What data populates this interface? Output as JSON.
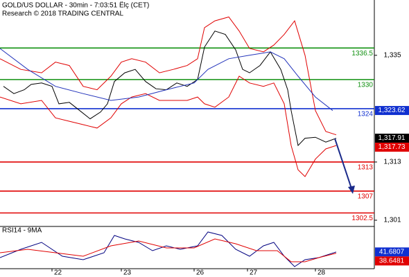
{
  "chart_data": [
    {
      "type": "line",
      "title": "GOLD/US DOLLAR - 30min - 7:03:51 Ëlç (CET)",
      "subtitle": "Research © 2018 TRADING CENTRAL",
      "xlim": [
        0,
        108
      ],
      "xticks": [
        {
          "value": 15,
          "label": "22"
        },
        {
          "value": 35,
          "label": "23"
        },
        {
          "value": 56,
          "label": "26"
        },
        {
          "value": 71.4,
          "label": "27"
        },
        {
          "value": 91,
          "label": "28"
        }
      ],
      "ylim": [
        1300,
        1346.4
      ],
      "yticks": [
        {
          "value": 1335,
          "label": "1,335"
        },
        {
          "value": 1313,
          "label": "1,313"
        },
        {
          "value": 1301,
          "label": "1,301"
        }
      ],
      "series": [
        {
          "color": "#000000",
          "x": [
            1,
            4,
            7,
            9,
            12,
            15,
            17,
            20,
            23,
            26,
            29,
            31,
            33,
            36,
            39,
            42,
            45,
            48,
            51,
            54,
            57,
            59,
            62,
            65,
            68,
            70,
            72,
            75,
            78,
            81,
            83,
            84,
            86,
            88,
            91,
            94,
            97
          ],
          "values": [
            1328.6,
            1327.1,
            1327.9,
            1329,
            1329.3,
            1328.6,
            1325,
            1325.3,
            1323.6,
            1321.9,
            1323.3,
            1325,
            1329.6,
            1331.4,
            1332.1,
            1329.6,
            1328.1,
            1327.9,
            1329.3,
            1328.6,
            1330,
            1336.7,
            1340,
            1339.3,
            1336.1,
            1332.1,
            1331.4,
            1332.9,
            1335.7,
            1332.1,
            1327.9,
            1323.6,
            1316.4,
            1317.9,
            1318.1,
            1317.1,
            1317.9
          ]
        },
        {
          "color": "#e00000",
          "x": [
            0,
            6,
            12,
            16,
            20,
            24,
            28,
            32,
            35,
            38,
            42,
            46,
            50,
            54,
            57,
            59,
            62,
            66,
            69,
            72,
            76,
            79,
            82,
            85,
            88,
            91,
            94,
            97
          ],
          "values": [
            1334.3,
            1332.1,
            1331.4,
            1333.6,
            1332.9,
            1328.6,
            1327.9,
            1330.7,
            1333.6,
            1334.3,
            1333.6,
            1331.4,
            1332.1,
            1332.9,
            1334.3,
            1340.7,
            1342.1,
            1342.9,
            1340,
            1336.4,
            1335.7,
            1337.1,
            1339.3,
            1342.1,
            1335,
            1323.6,
            1319.3,
            1318.6
          ]
        },
        {
          "color": "#e00000",
          "x": [
            0,
            6,
            12,
            16,
            20,
            24,
            28,
            32,
            35,
            38,
            42,
            46,
            50,
            54,
            57,
            59,
            62,
            66,
            69,
            72,
            76,
            79,
            82,
            84,
            86,
            88,
            91,
            94,
            97
          ],
          "values": [
            1326.4,
            1325,
            1325.7,
            1322.1,
            1321.4,
            1320.7,
            1320,
            1322.1,
            1325,
            1326.4,
            1327.1,
            1325.7,
            1325.7,
            1325.7,
            1326.4,
            1325,
            1324.3,
            1326.4,
            1330.7,
            1329.3,
            1328.6,
            1329.3,
            1325,
            1316.4,
            1311.4,
            1310,
            1313.6,
            1315.7,
            1316.4
          ]
        },
        {
          "color": "#2233bb",
          "x": [
            0,
            8,
            16,
            24,
            32,
            40,
            48,
            56,
            60,
            66,
            72,
            78,
            82,
            86,
            91,
            96
          ],
          "values": [
            1336.4,
            1332.1,
            1328.6,
            1327.1,
            1325.7,
            1326.4,
            1327.9,
            1329.3,
            1332.1,
            1334.3,
            1335,
            1335.7,
            1334.3,
            1330.7,
            1326.4,
            1323.6
          ]
        }
      ],
      "levels": [
        {
          "value": 1336.5,
          "color": "#109010"
        },
        {
          "value": 1330,
          "color": "#109010"
        },
        {
          "value": 1324,
          "color": "#1030d0"
        },
        {
          "value": 1313,
          "color": "#e00000"
        },
        {
          "value": 1307,
          "color": "#e00000"
        },
        {
          "value": 1302.5,
          "color": "#e00000"
        }
      ],
      "price_labels": [
        {
          "value": 1323.62,
          "label": "1,323.62",
          "color": "#1030d0"
        },
        {
          "value": 1317.91,
          "label": "1,317.91",
          "color": "#000000"
        },
        {
          "value": 1317.73,
          "label": "1,317.73",
          "color": "#e00000"
        }
      ]
    },
    {
      "type": "line",
      "title": "RSI14 - 9MA",
      "xlim": [
        0,
        108
      ],
      "ylim": [
        0,
        100
      ],
      "series": [
        {
          "color": "#000080",
          "x": [
            0,
            6,
            12,
            18,
            24,
            30,
            33,
            36,
            40,
            44,
            48,
            52,
            57,
            60,
            64,
            68,
            72,
            76,
            79,
            82,
            85,
            88,
            92,
            97
          ],
          "values": [
            27.6,
            48.3,
            65.5,
            31,
            22.4,
            39.7,
            82.8,
            74.1,
            65.5,
            44.8,
            56.9,
            48.3,
            56.9,
            91.4,
            82.8,
            48.3,
            31,
            56.9,
            65.5,
            31,
            5.2,
            22.4,
            27.6,
            41.7
          ]
        },
        {
          "color": "#e00000",
          "x": [
            0,
            8,
            16,
            24,
            32,
            40,
            48,
            56,
            62,
            68,
            74,
            80,
            84,
            88,
            92,
            97
          ],
          "values": [
            39.7,
            48.3,
            39.7,
            31,
            56.9,
            69,
            51.7,
            51.7,
            74.1,
            62.1,
            44.8,
            44.8,
            17.2,
            17.2,
            27.6,
            38.6
          ]
        }
      ],
      "price_labels": [
        {
          "value": 41.6807,
          "label": "41.6807",
          "color": "#1030d0"
        },
        {
          "value": 38.6481,
          "label": "38.6481",
          "color": "#e00000"
        }
      ]
    }
  ]
}
